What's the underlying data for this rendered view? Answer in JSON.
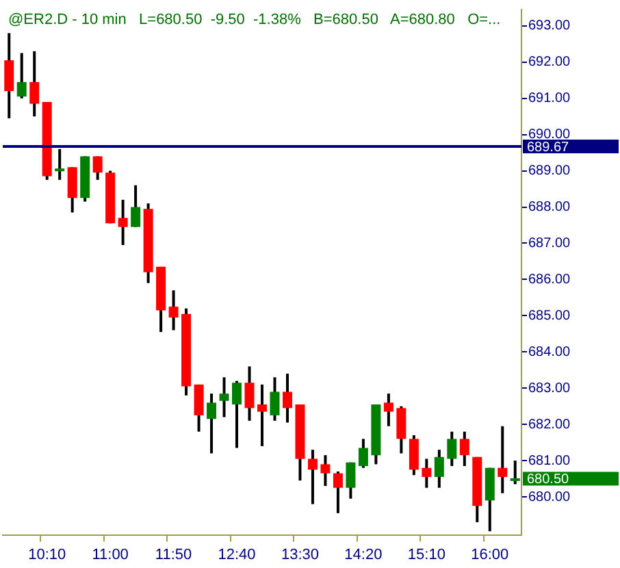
{
  "chart_data": {
    "type": "candlestick",
    "title": "@ER2.D - 10 min   L=680.50  -9.50  -1.38%   B=680.50   A=680.80   O=...",
    "categories": [
      null,
      null,
      null,
      "10:10",
      null,
      null,
      null,
      null,
      "11:00",
      null,
      null,
      null,
      null,
      "11:50",
      null,
      null,
      null,
      null,
      "12:40",
      null,
      null,
      null,
      null,
      "13:30",
      null,
      null,
      null,
      null,
      "14:20",
      null,
      null,
      null,
      null,
      "15:10",
      null,
      null,
      null,
      null,
      "16:00",
      null,
      null
    ],
    "ohlc": [
      [
        692.05,
        692.8,
        690.45,
        691.2
      ],
      [
        691.05,
        692.25,
        691.0,
        691.45
      ],
      [
        691.45,
        692.3,
        690.5,
        690.85
      ],
      [
        690.9,
        690.9,
        688.75,
        688.85
      ],
      [
        689.0,
        689.6,
        688.75,
        689.05
      ],
      [
        689.1,
        689.1,
        687.85,
        688.25
      ],
      [
        688.25,
        689.4,
        688.15,
        689.4
      ],
      [
        689.4,
        689.4,
        688.75,
        688.95
      ],
      [
        688.95,
        689.0,
        687.55,
        687.55
      ],
      [
        687.7,
        688.2,
        686.95,
        687.45
      ],
      [
        687.45,
        688.6,
        687.45,
        688.0
      ],
      [
        687.95,
        688.1,
        685.9,
        686.2
      ],
      [
        686.35,
        686.35,
        684.55,
        685.15
      ],
      [
        685.25,
        685.7,
        684.6,
        684.95
      ],
      [
        685.05,
        685.2,
        682.8,
        683.05
      ],
      [
        683.1,
        683.1,
        681.8,
        682.25
      ],
      [
        682.15,
        682.85,
        681.2,
        682.6
      ],
      [
        682.65,
        683.3,
        682.2,
        682.85
      ],
      [
        682.55,
        683.2,
        681.35,
        683.15
      ],
      [
        683.15,
        683.6,
        682.1,
        682.45
      ],
      [
        682.55,
        683.1,
        681.4,
        682.35
      ],
      [
        682.25,
        683.3,
        682.1,
        682.9
      ],
      [
        682.9,
        683.4,
        682.05,
        682.45
      ],
      [
        682.55,
        682.55,
        680.45,
        681.05
      ],
      [
        681.05,
        681.3,
        679.8,
        680.75
      ],
      [
        680.9,
        681.15,
        680.3,
        680.65
      ],
      [
        680.65,
        680.7,
        679.55,
        680.25
      ],
      [
        680.25,
        680.95,
        679.95,
        680.95
      ],
      [
        680.85,
        681.6,
        680.8,
        681.35
      ],
      [
        681.15,
        682.55,
        680.9,
        682.55
      ],
      [
        682.6,
        682.85,
        681.95,
        682.35
      ],
      [
        682.45,
        682.5,
        681.2,
        681.6
      ],
      [
        681.6,
        681.7,
        680.6,
        680.75
      ],
      [
        680.8,
        681.05,
        680.25,
        680.55
      ],
      [
        680.55,
        681.3,
        680.25,
        681.1
      ],
      [
        681.05,
        681.8,
        680.85,
        681.6
      ],
      [
        681.6,
        681.8,
        680.85,
        681.15
      ],
      [
        681.1,
        681.1,
        679.3,
        679.75
      ],
      [
        679.9,
        680.8,
        679.05,
        680.8
      ],
      [
        680.8,
        681.95,
        680.1,
        680.55
      ],
      [
        680.45,
        681.0,
        680.35,
        680.5
      ]
    ],
    "colors": [
      "#ff0000",
      "#008000",
      "#ff0000",
      "#ff0000",
      "#008000",
      "#ff0000",
      "#008000",
      "#ff0000",
      "#ff0000",
      "#ff0000",
      "#008000",
      "#ff0000",
      "#ff0000",
      "#ff0000",
      "#ff0000",
      "#ff0000",
      "#008000",
      "#008000",
      "#008000",
      "#ff0000",
      "#ff0000",
      "#008000",
      "#ff0000",
      "#ff0000",
      "#ff0000",
      "#ff0000",
      "#ff0000",
      "#008000",
      "#008000",
      "#008000",
      "#ff0000",
      "#ff0000",
      "#ff0000",
      "#ff0000",
      "#008000",
      "#008000",
      "#ff0000",
      "#ff0000",
      "#008000",
      "#ff0000",
      "#008000"
    ],
    "ylim": [
      678.95,
      693.45
    ],
    "yticks": [
      {
        "value": 680,
        "label": "680.00"
      },
      {
        "value": 681,
        "label": "681.00"
      },
      {
        "value": 682,
        "label": "682.00"
      },
      {
        "value": 683,
        "label": "683.00"
      },
      {
        "value": 684,
        "label": "684.00"
      },
      {
        "value": 685,
        "label": "685.00"
      },
      {
        "value": 686,
        "label": "686.00"
      },
      {
        "value": 687,
        "label": "687.00"
      },
      {
        "value": 688,
        "label": "688.00"
      },
      {
        "value": 689,
        "label": "689.00"
      },
      {
        "value": 690,
        "label": "690.00"
      },
      {
        "value": 691,
        "label": "691.00"
      },
      {
        "value": 692,
        "label": "692.00"
      },
      {
        "value": 693,
        "label": "693.00"
      }
    ],
    "ref_lines": [
      {
        "axis": "y",
        "value": 689.67,
        "label": "689.67",
        "color": "#000080"
      }
    ],
    "annotations": [
      "680.50"
    ],
    "grid": false,
    "legend": false
  }
}
